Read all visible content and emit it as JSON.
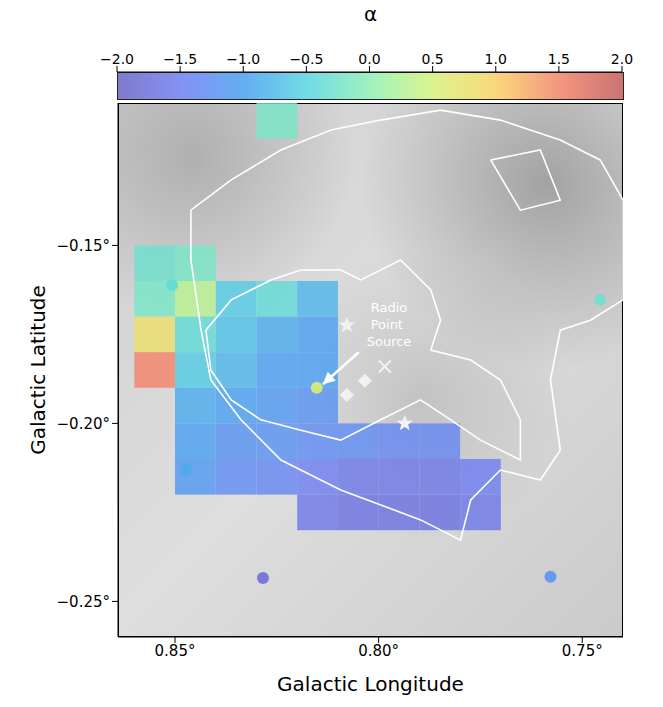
{
  "chart_data": {
    "type": "heatmap",
    "x_label": "Galactic Longitude",
    "y_label": "Galactic Latitude",
    "xlim": [
      0.864,
      0.74
    ],
    "ylim": [
      -0.26,
      -0.11
    ],
    "xticks": [
      {
        "value": 0.85,
        "label": "0.85°"
      },
      {
        "value": 0.8,
        "label": "0.80°"
      },
      {
        "value": 0.75,
        "label": "0.75°"
      }
    ],
    "yticks": [
      {
        "value": -0.25,
        "label": "−0.25°"
      },
      {
        "value": -0.2,
        "label": "−0.20°"
      },
      {
        "value": -0.15,
        "label": "−0.15°"
      }
    ],
    "cells": {
      "cell_size": [
        0.01,
        0.01
      ],
      "points": [
        [
          0.825,
          -0.115,
          -0.2
        ],
        [
          0.855,
          -0.155,
          -0.3
        ],
        [
          0.845,
          -0.155,
          -0.2
        ],
        [
          0.855,
          -0.165,
          -0.2
        ],
        [
          0.845,
          -0.165,
          0.3
        ],
        [
          0.835,
          -0.165,
          -0.6
        ],
        [
          0.825,
          -0.165,
          -0.4
        ],
        [
          0.815,
          -0.165,
          -0.8
        ],
        [
          0.855,
          -0.175,
          0.8
        ],
        [
          0.845,
          -0.175,
          -0.4
        ],
        [
          0.835,
          -0.175,
          -0.7
        ],
        [
          0.825,
          -0.175,
          -0.9
        ],
        [
          0.815,
          -0.175,
          -1.0
        ],
        [
          0.855,
          -0.185,
          1.5
        ],
        [
          0.845,
          -0.185,
          -0.6
        ],
        [
          0.835,
          -0.185,
          -0.8
        ],
        [
          0.825,
          -0.185,
          -1.0
        ],
        [
          0.815,
          -0.185,
          -1.0
        ],
        [
          0.845,
          -0.195,
          -0.9
        ],
        [
          0.835,
          -0.195,
          -1.0
        ],
        [
          0.825,
          -0.195,
          -1.1
        ],
        [
          0.815,
          -0.195,
          -1.2
        ],
        [
          0.845,
          -0.205,
          -1.0
        ],
        [
          0.835,
          -0.205,
          -1.2
        ],
        [
          0.825,
          -0.205,
          -1.2
        ],
        [
          0.815,
          -0.205,
          -1.3
        ],
        [
          0.805,
          -0.205,
          -1.3
        ],
        [
          0.795,
          -0.205,
          -1.4
        ],
        [
          0.785,
          -0.205,
          -1.4
        ],
        [
          0.845,
          -0.215,
          -1.1
        ],
        [
          0.835,
          -0.215,
          -1.3
        ],
        [
          0.825,
          -0.215,
          -1.4
        ],
        [
          0.815,
          -0.215,
          -1.5
        ],
        [
          0.805,
          -0.215,
          -1.6
        ],
        [
          0.795,
          -0.215,
          -1.6
        ],
        [
          0.785,
          -0.215,
          -1.6
        ],
        [
          0.775,
          -0.215,
          -1.5
        ],
        [
          0.815,
          -0.225,
          -1.6
        ],
        [
          0.805,
          -0.225,
          -1.7
        ],
        [
          0.795,
          -0.225,
          -1.7
        ],
        [
          0.785,
          -0.225,
          -1.7
        ],
        [
          0.775,
          -0.225,
          -1.6
        ]
      ]
    },
    "compact_sources": [
      [
        0.8152,
        -0.19,
        0.6
      ],
      [
        0.7456,
        -0.1653,
        -0.3
      ],
      [
        0.8284,
        -0.2434,
        -1.8
      ],
      [
        0.7578,
        -0.2431,
        -1.2
      ],
      [
        0.8507,
        -0.1611,
        -0.4
      ],
      [
        0.8473,
        -0.2131,
        -0.9
      ]
    ],
    "colorbar": {
      "label": "α",
      "range": [
        -2,
        2
      ],
      "ticks": [
        {
          "value": -2,
          "label": "−2.0"
        },
        {
          "value": -1.5,
          "label": "−1.5"
        },
        {
          "value": -1,
          "label": "−1.0"
        },
        {
          "value": -0.5,
          "label": "−0.5"
        },
        {
          "value": 0,
          "label": "0.0"
        },
        0.5,
        {
          "value": 1,
          "label": "1.0"
        },
        1.5,
        {
          "value": 2,
          "label": "2.0"
        }
      ]
    },
    "contours": [
      [
        [
          0.8424,
          -0.1738
        ],
        [
          0.8362,
          -0.1653
        ],
        [
          0.8264,
          -0.1597
        ],
        [
          0.8191,
          -0.1569
        ],
        [
          0.8093,
          -0.1569
        ],
        [
          0.8044,
          -0.1597
        ],
        [
          0.7946,
          -0.1541
        ],
        [
          0.7872,
          -0.1625
        ],
        [
          0.7848,
          -0.171
        ],
        [
          0.7872,
          -0.1794
        ],
        [
          0.7774,
          -0.1822
        ],
        [
          0.7701,
          -0.1878
        ],
        [
          0.7652,
          -0.199
        ],
        [
          0.7652,
          -0.2103
        ],
        [
          0.775,
          -0.2047
        ],
        [
          0.7823,
          -0.199
        ],
        [
          0.7897,
          -0.1934
        ],
        [
          0.7995,
          -0.199
        ],
        [
          0.8093,
          -0.2047
        ],
        [
          0.8191,
          -0.2019
        ],
        [
          0.8289,
          -0.199
        ],
        [
          0.8362,
          -0.1934
        ],
        [
          0.8412,
          -0.185
        ]
      ],
      [
        [
          0.8461,
          -0.1401
        ],
        [
          0.8362,
          -0.1316
        ],
        [
          0.824,
          -0.1232
        ],
        [
          0.8117,
          -0.1176
        ],
        [
          0.7995,
          -0.1148
        ],
        [
          0.7848,
          -0.112
        ],
        [
          0.7701,
          -0.1148
        ],
        [
          0.7554,
          -0.1204
        ],
        [
          0.7456,
          -0.126
        ],
        [
          0.74,
          -0.1373
        ],
        [
          0.74,
          -0.1653
        ],
        [
          0.748,
          -0.171
        ],
        [
          0.7554,
          -0.1738
        ],
        [
          0.7578,
          -0.1878
        ],
        [
          0.7554,
          -0.2075
        ],
        [
          0.7603,
          -0.2159
        ],
        [
          0.7701,
          -0.2131
        ],
        [
          0.7774,
          -0.2215
        ],
        [
          0.7799,
          -0.2328
        ],
        [
          0.7897,
          -0.2271
        ],
        [
          0.8093,
          -0.2187
        ],
        [
          0.824,
          -0.2103
        ],
        [
          0.8338,
          -0.199
        ],
        [
          0.8412,
          -0.1878
        ],
        [
          0.8436,
          -0.1738
        ],
        [
          0.8461,
          -0.1541
        ]
      ],
      [
        [
          0.7725,
          -0.126
        ],
        [
          0.7603,
          -0.1232
        ],
        [
          0.7554,
          -0.1373
        ],
        [
          0.7652,
          -0.1401
        ]
      ]
    ],
    "markers": [
      {
        "marker": "star",
        "points": [
          [
            0.8078,
            -0.1724
          ],
          [
            0.7936,
            -0.2
          ]
        ]
      },
      {
        "marker": "diamond",
        "points": [
          [
            0.8034,
            -0.188
          ],
          [
            0.8078,
            -0.192
          ]
        ]
      },
      {
        "marker": "x",
        "points": [
          [
            0.7985,
            -0.184
          ]
        ]
      }
    ],
    "annotations": [
      {
        "text": "Radio Point Source",
        "xy": [
          0.8137,
          -0.189
        ],
        "xytext": [
          0.8049,
          -0.18
        ]
      }
    ]
  }
}
